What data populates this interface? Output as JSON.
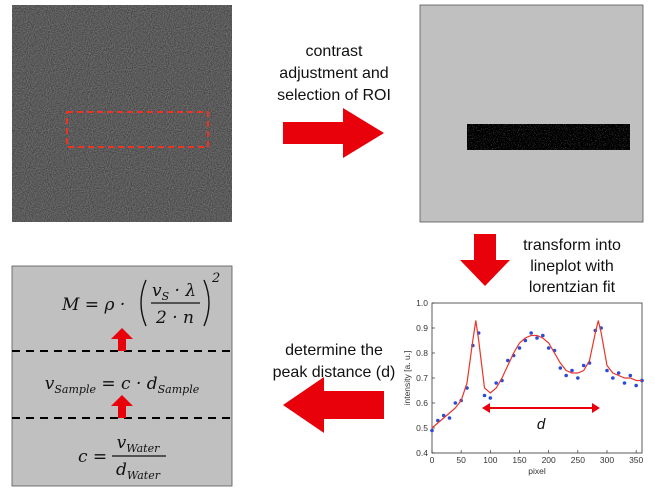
{
  "steps": {
    "step1": [
      "contrast",
      "adjustment and",
      "selection of ROI"
    ],
    "step2": [
      "transform into",
      "lineplot with",
      "lorentzian fit"
    ],
    "step3": [
      "determine the",
      "peak distance (d)"
    ]
  },
  "formulas": [
    {
      "lhs": "M = ρ ·",
      "num": "v",
      "num_sub": "S",
      "num_rest": " · λ",
      "den": "2 · n",
      "power": "2"
    },
    {
      "lhs": "v",
      "lhs_sub": "Sample",
      "rhs": " = c · d",
      "rhs_sub": "Sample"
    },
    {
      "lhs": "c =",
      "num": "v",
      "num_sub": "Water",
      "den": "d",
      "den_sub": "Water"
    }
  ],
  "lineplot": {
    "type": "scatter",
    "x_label": "pixel",
    "y_label": "intensity [a. u.]",
    "distance_label": "d",
    "xlim": [
      0,
      360
    ],
    "ylim": [
      0.4,
      1.0
    ],
    "xticks": [
      0,
      50,
      100,
      150,
      200,
      250,
      300,
      350
    ],
    "yticks": [
      0.4,
      0.5,
      0.6,
      0.7,
      0.8,
      0.9,
      {
        "value": 1.0,
        "label": "1.0"
      }
    ],
    "points": {
      "color": "#2a4bd7",
      "x": [
        0,
        10,
        20,
        30,
        40,
        50,
        60,
        70,
        80,
        90,
        100,
        110,
        120,
        130,
        140,
        150,
        160,
        170,
        180,
        190,
        200,
        210,
        220,
        230,
        240,
        250,
        260,
        270,
        280,
        290,
        300,
        310,
        320,
        330,
        340,
        350,
        360
      ],
      "y": [
        0.49,
        0.53,
        0.55,
        0.54,
        0.6,
        0.61,
        0.66,
        0.83,
        0.88,
        0.63,
        0.62,
        0.68,
        0.69,
        0.77,
        0.79,
        0.82,
        0.85,
        0.88,
        0.86,
        0.87,
        0.82,
        0.81,
        0.74,
        0.71,
        0.73,
        0.7,
        0.75,
        0.76,
        0.89,
        0.9,
        0.73,
        0.7,
        0.72,
        0.68,
        0.71,
        0.67,
        0.69
      ]
    },
    "fit": {
      "color": "#e8352b",
      "x": [
        0,
        10,
        20,
        30,
        40,
        50,
        60,
        70,
        75,
        80,
        90,
        100,
        110,
        120,
        130,
        140,
        150,
        160,
        170,
        180,
        190,
        200,
        210,
        220,
        230,
        240,
        250,
        260,
        270,
        280,
        285,
        290,
        300,
        310,
        320,
        330,
        340,
        350,
        360
      ],
      "y": [
        0.5,
        0.52,
        0.54,
        0.56,
        0.58,
        0.61,
        0.68,
        0.85,
        0.93,
        0.85,
        0.66,
        0.64,
        0.66,
        0.7,
        0.75,
        0.8,
        0.84,
        0.86,
        0.87,
        0.87,
        0.86,
        0.84,
        0.8,
        0.76,
        0.73,
        0.72,
        0.72,
        0.73,
        0.77,
        0.88,
        0.93,
        0.88,
        0.75,
        0.72,
        0.71,
        0.7,
        0.7,
        0.69,
        0.69
      ]
    }
  }
}
